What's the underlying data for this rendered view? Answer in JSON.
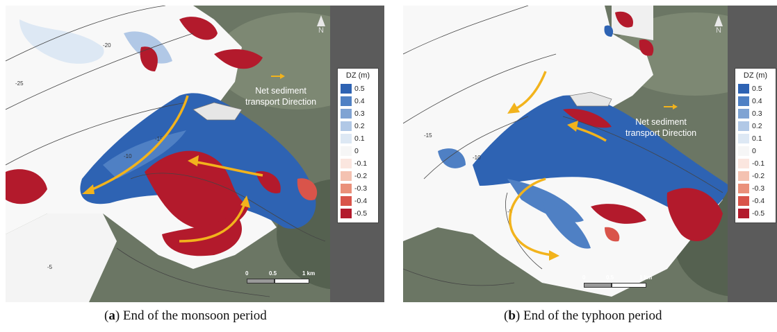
{
  "panels": [
    {
      "id": "a",
      "caption_letter": "a",
      "caption_text": "End of the monsoon period",
      "north_label": "N",
      "net_label_line1": "Net sediment",
      "net_label_line2": "transport Direction",
      "legend_title": "DZ (m)",
      "scale_labels": [
        "0",
        "0.5",
        "1 km"
      ],
      "contour_labels": [
        "-25",
        "-20",
        "-15",
        "-10",
        "-5"
      ]
    },
    {
      "id": "b",
      "caption_letter": "b",
      "caption_text": "End of the typhoon period",
      "north_label": "N",
      "net_label_line1": "Net sediment",
      "net_label_line2": "transport Direction",
      "legend_title": "DZ (m)",
      "scale_labels": [
        "0",
        "0.5",
        "1 km"
      ],
      "contour_labels": [
        "-15",
        "-10",
        "-5"
      ]
    }
  ],
  "legend_values": [
    "0.5",
    "0.4",
    "0.3",
    "0.2",
    "0.1",
    "0",
    "-0.1",
    "-0.2",
    "-0.3",
    "-0.4",
    "-0.5"
  ],
  "legend_colors": [
    "#2e63b3",
    "#4f80c4",
    "#7fa3d3",
    "#b1c8e6",
    "#dde8f4",
    "#f6f6f6",
    "#fbe6df",
    "#f4c2b1",
    "#ea907a",
    "#d9544a",
    "#b31a2c"
  ],
  "arrow_color": "#f2b31c",
  "erosion_color": "#b31a2c",
  "deposition_color": "#2e63b3"
}
